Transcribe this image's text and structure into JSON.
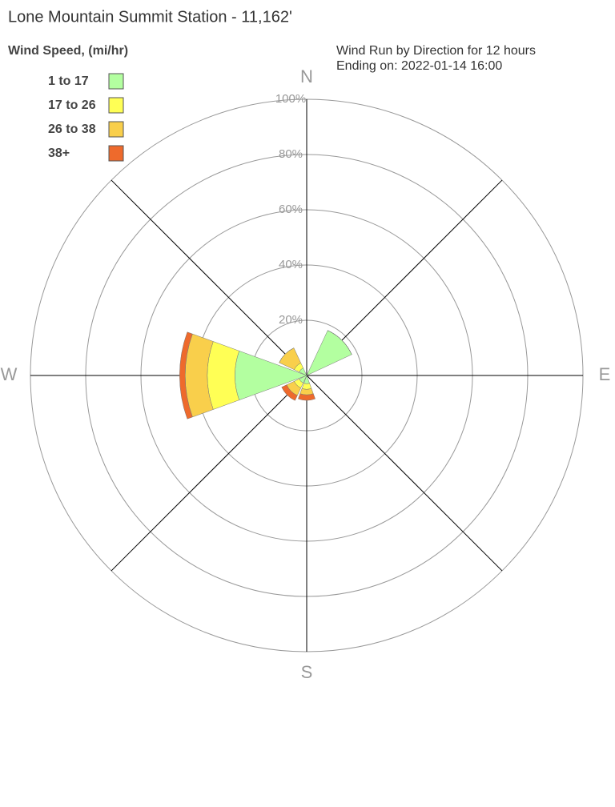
{
  "chart_data": {
    "type": "windrose",
    "title": "Lone Mountain Summit Station - 11,162'",
    "subtitle": [
      "Wind Run by Direction for 12 hours",
      "Ending on: 2022-01-14 16:00"
    ],
    "legend_title": "Wind Speed, (mi/hr)",
    "legend_position": "upper left",
    "categories": [
      "N",
      null,
      "E",
      null,
      "S",
      null,
      "W",
      null
    ],
    "series": [
      {
        "name": "1 to 17",
        "color": "#b3ffa0",
        "values": [
          0,
          18,
          0,
          0,
          3,
          3,
          26,
          3
        ]
      },
      {
        "name": "17 to 26",
        "color": "#ffff55",
        "values": [
          0,
          0,
          0,
          0,
          2,
          2,
          10,
          2
        ]
      },
      {
        "name": "26 to 38",
        "color": "#f9cf4b",
        "values": [
          0,
          0,
          0,
          0,
          2,
          3,
          8,
          6
        ]
      },
      {
        "name": "38+",
        "color": "#ee6a2c",
        "values": [
          0,
          0,
          0,
          0,
          2,
          2,
          2,
          0
        ]
      }
    ],
    "rlim": [
      0,
      100
    ],
    "rticks": [
      {
        "value": 20,
        "label": "20%"
      },
      {
        "value": 40,
        "label": "40%"
      },
      {
        "value": 60,
        "label": "60%"
      },
      {
        "value": 80,
        "label": "80%"
      },
      {
        "value": 100,
        "label": "100%"
      }
    ],
    "grid": true
  }
}
